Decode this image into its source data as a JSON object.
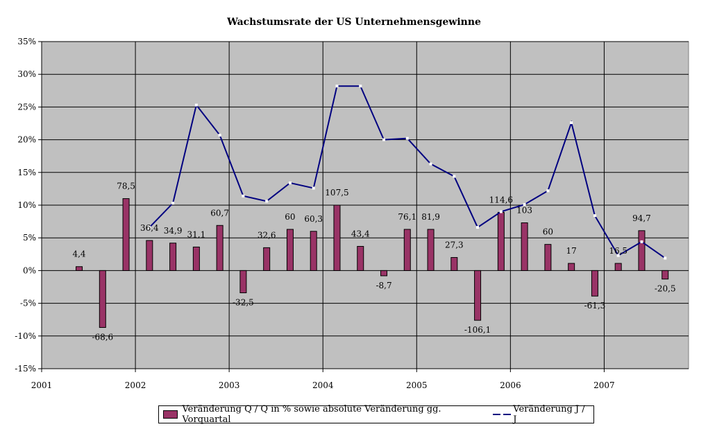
{
  "chart_data": {
    "type": "bar",
    "title": "Wachstumsrate der US Unternehmensgewinne",
    "xlabel": "",
    "ylabel": "",
    "ylim": [
      -15,
      35
    ],
    "y_ticks": [
      -15,
      -10,
      -5,
      0,
      5,
      10,
      15,
      20,
      25,
      30,
      35
    ],
    "y_tick_labels": [
      "-15%",
      "-10%",
      "-5%",
      "0%",
      "5%",
      "10%",
      "15%",
      "20%",
      "25%",
      "30%",
      "35%"
    ],
    "x_range": [
      2001,
      2007.9
    ],
    "x_tick_labels": [
      "2001",
      "2002",
      "2003",
      "2004",
      "2005",
      "2006",
      "2007"
    ],
    "grid": true,
    "legend_position": "bottom",
    "series": [
      {
        "name": "Veränderung Q / Q in % sowie absolute Veränderung gg. Vorquartal",
        "kind": "bar",
        "color": "#993366",
        "points": [
          {
            "x": 2001.4,
            "y": 0.6,
            "label": "4,4"
          },
          {
            "x": 2001.65,
            "y": -8.7,
            "label": "-68,6"
          },
          {
            "x": 2001.9,
            "y": 11.0,
            "label": "78,5"
          },
          {
            "x": 2002.15,
            "y": 4.6,
            "label": "36,4"
          },
          {
            "x": 2002.4,
            "y": 4.2,
            "label": "34,9"
          },
          {
            "x": 2002.65,
            "y": 3.6,
            "label": "31,1"
          },
          {
            "x": 2002.9,
            "y": 6.9,
            "label": "60,7"
          },
          {
            "x": 2003.15,
            "y": -3.4,
            "label": "-32,5"
          },
          {
            "x": 2003.4,
            "y": 3.5,
            "label": "32,6"
          },
          {
            "x": 2003.65,
            "y": 6.3,
            "label": "60"
          },
          {
            "x": 2003.9,
            "y": 6.0,
            "label": "60,3"
          },
          {
            "x": 2004.15,
            "y": 10.0,
            "label": "107,5"
          },
          {
            "x": 2004.4,
            "y": 3.7,
            "label": "43,4"
          },
          {
            "x": 2004.65,
            "y": -0.8,
            "label": "-8,7"
          },
          {
            "x": 2004.9,
            "y": 6.3,
            "label": "76,1"
          },
          {
            "x": 2005.15,
            "y": 6.3,
            "label": "81,9"
          },
          {
            "x": 2005.4,
            "y": 2.0,
            "label": "27,3"
          },
          {
            "x": 2005.65,
            "y": -7.6,
            "label": "-106,1"
          },
          {
            "x": 2005.9,
            "y": 8.9,
            "label": "114,6"
          },
          {
            "x": 2006.15,
            "y": 7.3,
            "label": "103"
          },
          {
            "x": 2006.4,
            "y": 4.0,
            "label": "60"
          },
          {
            "x": 2006.65,
            "y": 1.1,
            "label": "17"
          },
          {
            "x": 2006.9,
            "y": -3.9,
            "label": "-61,3"
          },
          {
            "x": 2007.15,
            "y": 1.1,
            "label": "16,5"
          },
          {
            "x": 2007.4,
            "y": 6.1,
            "label": "94,7"
          },
          {
            "x": 2007.65,
            "y": -1.3,
            "label": "-20,5"
          }
        ]
      },
      {
        "name": "Veränderung J / J",
        "kind": "line",
        "color": "#000080",
        "points": [
          {
            "x": 2002.15,
            "y": 6.6
          },
          {
            "x": 2002.4,
            "y": 10.3
          },
          {
            "x": 2002.65,
            "y": 25.3
          },
          {
            "x": 2002.9,
            "y": 20.7
          },
          {
            "x": 2003.15,
            "y": 11.4
          },
          {
            "x": 2003.4,
            "y": 10.6
          },
          {
            "x": 2003.65,
            "y": 13.4
          },
          {
            "x": 2003.9,
            "y": 12.6
          },
          {
            "x": 2004.15,
            "y": 28.2
          },
          {
            "x": 2004.4,
            "y": 28.2
          },
          {
            "x": 2004.65,
            "y": 20.0
          },
          {
            "x": 2004.9,
            "y": 20.2
          },
          {
            "x": 2005.15,
            "y": 16.3
          },
          {
            "x": 2005.4,
            "y": 14.4
          },
          {
            "x": 2005.65,
            "y": 6.6
          },
          {
            "x": 2005.9,
            "y": 9.0
          },
          {
            "x": 2006.15,
            "y": 10.1
          },
          {
            "x": 2006.4,
            "y": 12.2
          },
          {
            "x": 2006.65,
            "y": 22.6
          },
          {
            "x": 2006.9,
            "y": 8.4
          },
          {
            "x": 2007.15,
            "y": 2.3
          },
          {
            "x": 2007.4,
            "y": 4.4
          },
          {
            "x": 2007.65,
            "y": 1.9
          }
        ]
      }
    ]
  },
  "colors": {
    "plot_background": "#c0c0c0",
    "bar_fill": "#993366",
    "line_color": "#000080",
    "grid": "#000000"
  }
}
